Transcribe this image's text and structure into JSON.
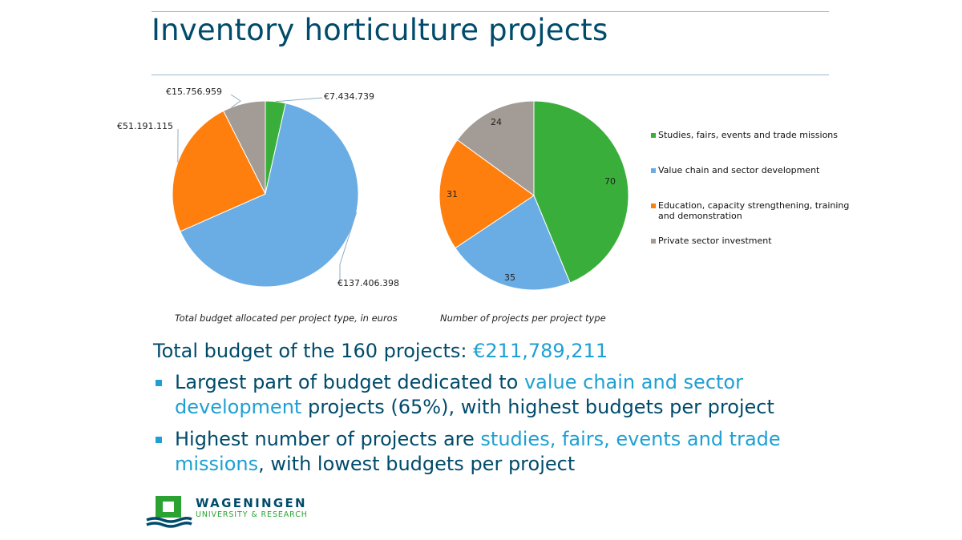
{
  "slide": {
    "title": "Inventory horticulture projects"
  },
  "chart_data": [
    {
      "type": "pie",
      "caption": "Total budget allocated per project type, in euros",
      "categories": [
        "Studies, fairs, events and trade missions",
        "Value chain and sector development",
        "Education, capacity strengthening, training and demonstration",
        "Private sector investment"
      ],
      "values": [
        7434739,
        137406398,
        51191115,
        15756959
      ],
      "labels": [
        "€7.434.739",
        "€137.406.398",
        "€51.191.115",
        "€15.756.959"
      ],
      "colors": [
        "#3aae3a",
        "#6aade4",
        "#ff7f0e",
        "#a39b95"
      ],
      "start_angle_deg": 0,
      "direction": "clockwise"
    },
    {
      "type": "pie",
      "caption": "Number of projects per project type",
      "categories": [
        "Studies, fairs, events and trade missions",
        "Value chain and sector development",
        "Education, capacity strengthening, training and demonstration",
        "Private sector investment"
      ],
      "values": [
        70,
        35,
        31,
        24
      ],
      "labels": [
        "70",
        "35",
        "31",
        "24"
      ],
      "colors": [
        "#3aae3a",
        "#6aade4",
        "#ff7f0e",
        "#a39b95"
      ],
      "start_angle_deg": 0,
      "direction": "clockwise",
      "legend": {
        "placement": "right",
        "entries": [
          "Studies, fairs, events and trade missions",
          "Value chain and sector development",
          "Education, capacity strengthening, training and demonstration",
          "Private sector investment"
        ]
      }
    }
  ],
  "summary": {
    "prefix": "Total budget of the 160 projects: ",
    "amount": "€211,789,211"
  },
  "bullets": [
    {
      "pre": "Largest part of budget dedicated to ",
      "highlight": "value chain and sector development",
      "post": " projects (65%), with highest budgets per project"
    },
    {
      "pre": "Highest number of projects are ",
      "highlight": "studies, fairs, events and trade missions",
      "post": ", with lowest budgets per project"
    }
  ],
  "logo": {
    "name": "WAGENINGEN",
    "subtitle": "UNIVERSITY & RESEARCH"
  },
  "colors": {
    "title": "#004b6b",
    "accent": "#1ea0d4",
    "logo_green": "#2aa333"
  }
}
